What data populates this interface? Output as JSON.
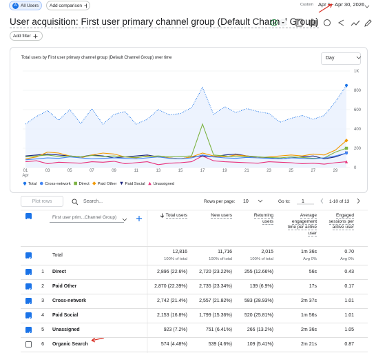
{
  "toolbar": {
    "segment_initial": "A",
    "segment": "All Users",
    "add_comparison": "Add comparison",
    "date_label": "Custom",
    "date_range": "Apr 1 - Apr 30, 2026"
  },
  "header": {
    "title": "User acquisition: First user primary channel group (Default Channel Group)",
    "add_filter": "Add filter"
  },
  "chart_data": {
    "type": "line",
    "title": "Total users by First user primary channel group (Default Channel Group) over time",
    "granularity": "Day",
    "categories": [
      "01",
      null,
      "03",
      null,
      "05",
      null,
      "07",
      null,
      "09",
      null,
      "11",
      null,
      "13",
      null,
      "15",
      null,
      "17",
      null,
      "19",
      null,
      "21",
      null,
      "23",
      null,
      "25",
      null,
      "27",
      null,
      "29",
      null
    ],
    "x_sublabel": "Apr",
    "ylim": [
      0,
      1000
    ],
    "yticks": [
      {
        "value": 1000,
        "label": "1K"
      },
      800,
      600,
      400,
      200,
      0
    ],
    "grid": true,
    "series": [
      {
        "name": "Total",
        "color": "#1a73e8",
        "marker": "pin",
        "dotted": true,
        "area": true,
        "values": [
          450,
          530,
          590,
          490,
          600,
          455,
          610,
          450,
          550,
          580,
          450,
          500,
          600,
          545,
          560,
          620,
          830,
          550,
          630,
          570,
          610,
          580,
          560,
          470,
          510,
          540,
          500,
          540,
          680,
          850
        ]
      },
      {
        "name": "Cross-network",
        "color": "#4285f4",
        "marker": "circle",
        "values": [
          80,
          90,
          100,
          95,
          110,
          100,
          90,
          95,
          100,
          95,
          90,
          100,
          110,
          95,
          90,
          100,
          130,
          110,
          100,
          95,
          105,
          100,
          95,
          90,
          100,
          95,
          90,
          100,
          120,
          150
        ]
      },
      {
        "name": "Direct",
        "color": "#7cb342",
        "marker": "square",
        "values": [
          110,
          120,
          130,
          115,
          120,
          110,
          125,
          115,
          120,
          110,
          105,
          115,
          120,
          110,
          115,
          120,
          450,
          130,
          120,
          110,
          115,
          110,
          105,
          100,
          110,
          105,
          95,
          100,
          160,
          200
        ]
      },
      {
        "name": "Paid Other",
        "color": "#f29900",
        "marker": "diamond",
        "values": [
          90,
          110,
          160,
          150,
          120,
          100,
          130,
          150,
          140,
          110,
          100,
          120,
          110,
          100,
          90,
          110,
          150,
          120,
          110,
          130,
          120,
          100,
          110,
          120,
          130,
          120,
          140,
          130,
          180,
          280
        ]
      },
      {
        "name": "Paid Social",
        "color": "#1a237e",
        "marker": "triangle-down",
        "values": [
          120,
          130,
          140,
          130,
          120,
          110,
          130,
          120,
          100,
          110,
          120,
          130,
          110,
          100,
          90,
          110,
          120,
          110,
          130,
          140,
          120,
          110,
          100,
          90,
          100,
          110,
          120,
          90,
          110,
          150
        ]
      },
      {
        "name": "Unassigned",
        "color": "#e8307a",
        "marker": "triangle-up",
        "values": [
          60,
          70,
          40,
          55,
          50,
          45,
          60,
          55,
          65,
          40,
          50,
          60,
          30,
          45,
          50,
          60,
          120,
          70,
          60,
          55,
          50,
          45,
          60,
          55,
          50,
          40,
          45,
          35,
          50,
          60
        ]
      }
    ]
  },
  "table": {
    "plot_rows": "Plot rows",
    "search_placeholder": "Search...",
    "rows_per_page_label": "Rows per page:",
    "rows_per_page": "10",
    "goto_label": "Go to:",
    "goto_value": "1",
    "pagination": "1-10 of 13",
    "dimension": "First user prim...Channel Group)",
    "columns": [
      {
        "label": "Total users",
        "sorted": true
      },
      {
        "label": "New users"
      },
      {
        "label": "Returning users"
      },
      {
        "label": "Average engagement time per active user"
      },
      {
        "label": "Engaged sessions per active user"
      }
    ],
    "totals": {
      "label": "Total",
      "checked": true,
      "cells": [
        {
          "value": "12,816",
          "sub": "100% of total"
        },
        {
          "value": "11,716",
          "sub": "100% of total"
        },
        {
          "value": "2,015",
          "sub": "100% of total"
        },
        {
          "value": "1m 36s",
          "sub": "Avg 0%"
        },
        {
          "value": "0.70",
          "sub": "Avg 0%"
        }
      ]
    },
    "rows": [
      {
        "index": 1,
        "name": "Direct",
        "checked": true,
        "cells": [
          "2,896 (22.6%)",
          "2,720 (23.22%)",
          "255 (12.66%)",
          "56s",
          "0.43"
        ]
      },
      {
        "index": 2,
        "name": "Paid Other",
        "checked": true,
        "cells": [
          "2,870 (22.39%)",
          "2,735 (23.34%)",
          "139 (6.9%)",
          "17s",
          "0.17"
        ]
      },
      {
        "index": 3,
        "name": "Cross-network",
        "checked": true,
        "cells": [
          "2,742 (21.4%)",
          "2,557 (21.82%)",
          "583 (28.93%)",
          "2m 37s",
          "1.01"
        ]
      },
      {
        "index": 4,
        "name": "Paid Social",
        "checked": true,
        "cells": [
          "2,153 (16.8%)",
          "1,799 (15.36%)",
          "520 (25.81%)",
          "1m 56s",
          "1.01"
        ]
      },
      {
        "index": 5,
        "name": "Unassigned",
        "checked": true,
        "cells": [
          "923 (7.2%)",
          "751 (6.41%)",
          "266 (13.2%)",
          "2m 36s",
          "1.05"
        ]
      },
      {
        "index": 6,
        "name": "Organic Search",
        "checked": false,
        "cells": [
          "574 (4.48%)",
          "539 (4.6%)",
          "109 (5.41%)",
          "2m 21s",
          "0.87"
        ]
      }
    ]
  }
}
